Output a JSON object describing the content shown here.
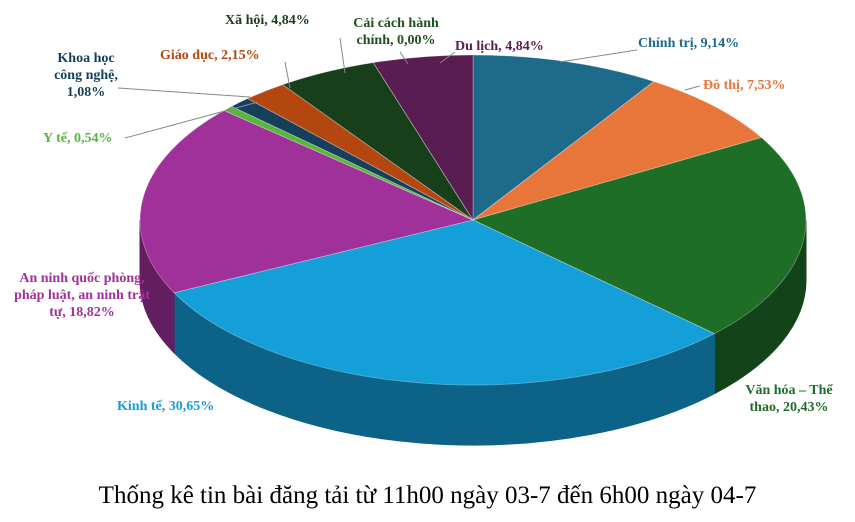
{
  "chart_data": {
    "type": "pie",
    "title": "Thống kê tin bài đăng tải từ 11h00 ngày 03-7 đến 6h00 ngày 04-7",
    "categories": [
      "Chính trị,",
      "Đô thị,",
      "Văn hóa – Thể thao,",
      "Kinh tế,",
      "An ninh quốc phòng, pháp luật, an ninh trật tự,",
      "Y tế,",
      "Khoa học công nghệ,",
      "Giáo dục,",
      "Xã hội,",
      "Cải cách hành chính,",
      "Du lịch,"
    ],
    "values": [
      9.14,
      7.53,
      20.43,
      30.65,
      18.82,
      0.54,
      1.08,
      2.15,
      4.84,
      0.0,
      4.84
    ],
    "value_labels": [
      "9,14%",
      "7,53%",
      "20,43%",
      "30,65%",
      "18,82%",
      "0,54%",
      "1,08%",
      "2,15%",
      "4,84%",
      "0,00%",
      "4,84%"
    ],
    "colors": [
      "#1d6a8a",
      "#e8763a",
      "#1f6e28",
      "#149fd9",
      "#a0319a",
      "#58b63a",
      "#163f5c",
      "#b4470f",
      "#173f19",
      "#2d6b2d",
      "#5a1d52"
    ]
  }
}
